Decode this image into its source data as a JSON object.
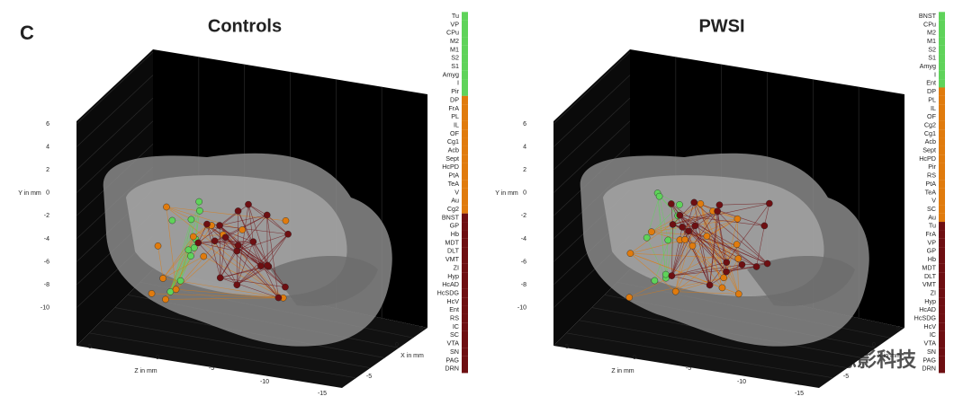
{
  "figure": {
    "panel_label": "C",
    "axes": {
      "y_label": "Y in mm",
      "z_label": "Z in mm",
      "x_label": "X in mm",
      "yticks": [
        6,
        4,
        2,
        0,
        -2,
        -4,
        -6,
        -8,
        -10
      ],
      "zticks": [
        5,
        0,
        -5,
        -10,
        -15
      ],
      "xticks": [
        5,
        0,
        -5
      ]
    },
    "module_colors": [
      "#5fd35a",
      "#e07b0d",
      "#6e0f12"
    ],
    "panels": [
      {
        "title": "Controls",
        "modules": [
          [
            "Tu",
            "VP",
            "CPu",
            "M2",
            "M1",
            "S2",
            "S1",
            "Amyg",
            "I",
            "Pir"
          ],
          [
            "DP",
            "FrA",
            "PL",
            "IL",
            "OF",
            "Cg1",
            "Acb",
            "Sept",
            "HcPD",
            "PtA",
            "TeA",
            "V",
            "Au",
            "Cg2"
          ],
          [
            "BNST",
            "GP",
            "Hb",
            "MDT",
            "DLT",
            "VMT",
            "ZI",
            "Hyp",
            "HcAD",
            "HcSDG",
            "HcV",
            "Ent",
            "RS",
            "IC",
            "SC",
            "VTA",
            "SN",
            "PAG",
            "DRN"
          ]
        ]
      },
      {
        "title": "PWSI",
        "modules": [
          [
            "BNST",
            "CPu",
            "M2",
            "M1",
            "S2",
            "S1",
            "Amyg",
            "I",
            "Ent"
          ],
          [
            "DP",
            "PL",
            "IL",
            "OF",
            "Cg2",
            "Cg1",
            "Acb",
            "Sept",
            "HcPD",
            "Pir",
            "RS",
            "PtA",
            "TeA",
            "V",
            "SC",
            "Au"
          ],
          [
            "Tu",
            "FrA",
            "VP",
            "GP",
            "Hb",
            "MDT",
            "DLT",
            "VMT",
            "ZI",
            "Hyp",
            "HcAD",
            "HcSDG",
            "HcV",
            "IC",
            "VTA",
            "SN",
            "PAG",
            "DRN"
          ]
        ]
      }
    ],
    "watermark": "思影科技"
  }
}
